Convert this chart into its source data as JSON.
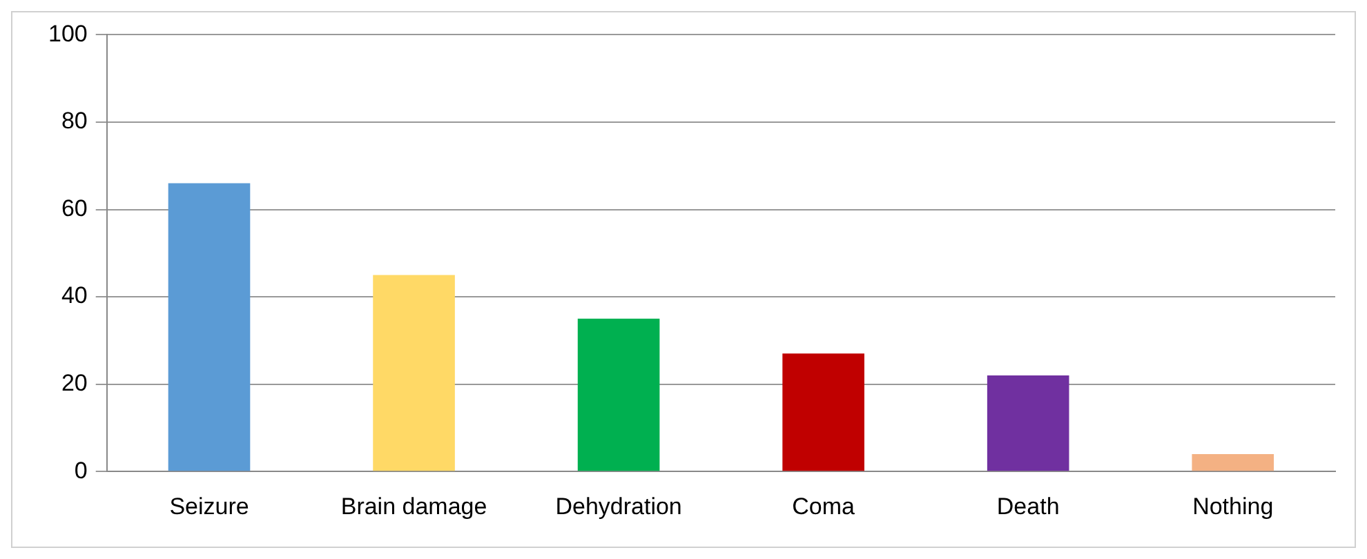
{
  "chart_data": {
    "type": "bar",
    "categories": [
      "Seizure",
      "Brain damage",
      "Dehydration",
      "Coma",
      "Death",
      "Nothing"
    ],
    "values": [
      66,
      45,
      35,
      27,
      22,
      4
    ],
    "colors": [
      "#5b9bd5",
      "#ffd966",
      "#00b050",
      "#c00000",
      "#7030a0",
      "#f4b183"
    ],
    "ylim": [
      0,
      100
    ],
    "yticks": [
      0,
      20,
      40,
      60,
      80,
      100
    ],
    "grid": "y",
    "legend": false
  }
}
